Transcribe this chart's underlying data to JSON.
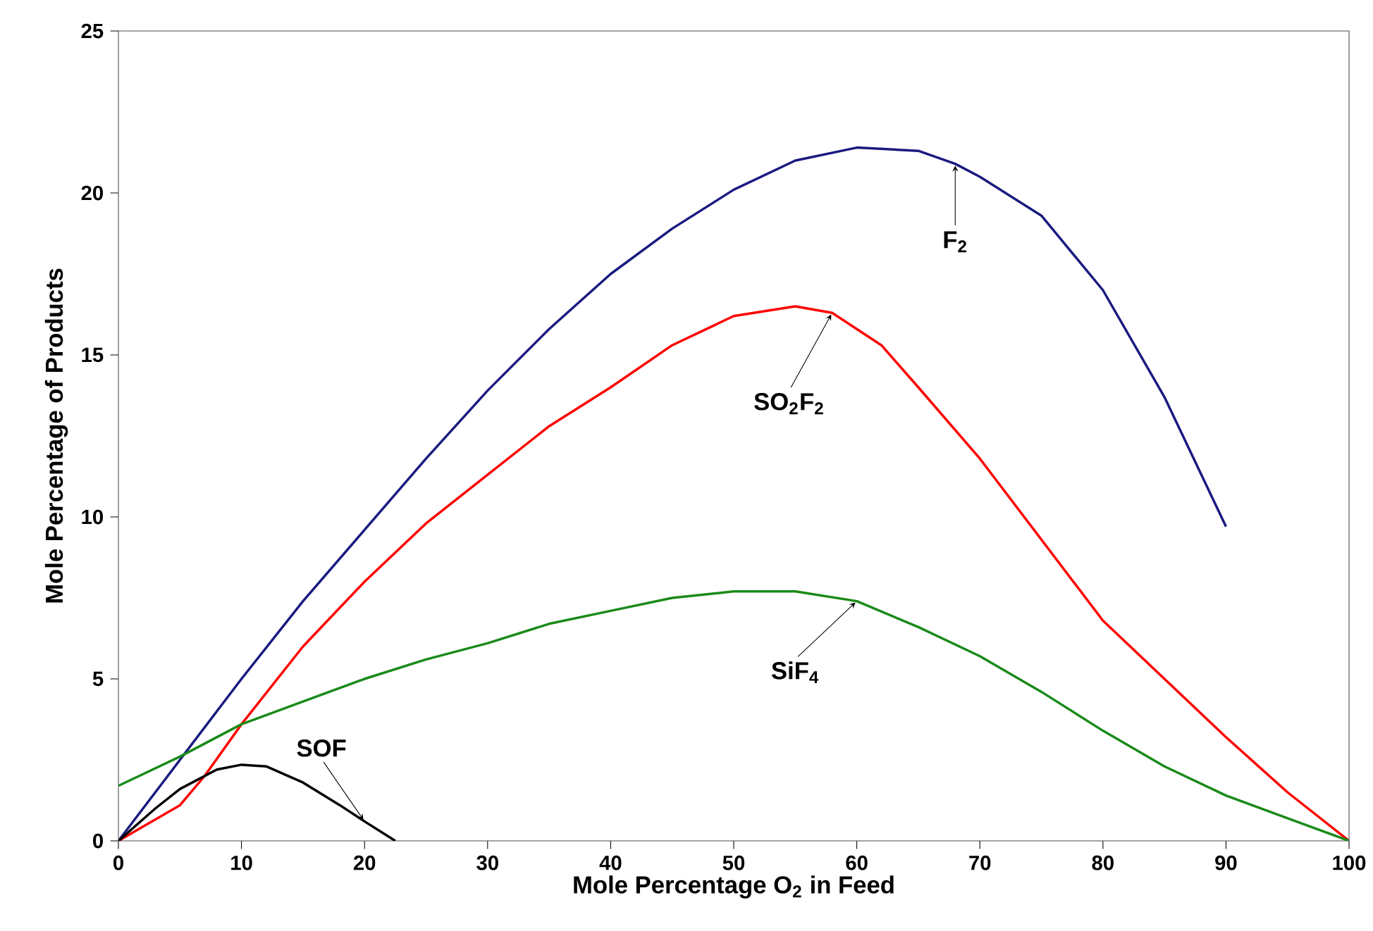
{
  "chart_data": {
    "type": "line",
    "xlabel": "Mole Percentage O$_{2}$ in Feed",
    "ylabel": "Mole Percentage of Products",
    "xlim": [
      0,
      100
    ],
    "ylim": [
      0,
      25
    ],
    "xticks": [
      0,
      10,
      20,
      30,
      40,
      50,
      60,
      70,
      80,
      90,
      100
    ],
    "yticks": [
      0,
      5,
      10,
      15,
      20,
      25
    ],
    "grid": false,
    "marker": "none",
    "line_style": "solid",
    "series": [
      {
        "color": "#1a1a80",
        "x": [
          0,
          5,
          10,
          15,
          20,
          25,
          30,
          35,
          40,
          45,
          50,
          55,
          60,
          65,
          68,
          70,
          75,
          80,
          85,
          90
        ],
        "values": [
          0,
          2.5,
          5.0,
          7.4,
          9.6,
          11.8,
          13.9,
          15.8,
          17.5,
          18.9,
          20.1,
          21.0,
          21.4,
          21.3,
          20.9,
          20.5,
          19.3,
          17.0,
          13.7,
          9.7
        ]
      },
      {
        "color": "#ff0000",
        "x": [
          0,
          5,
          7,
          10,
          15,
          20,
          25,
          30,
          35,
          40,
          45,
          50,
          55,
          58,
          62,
          65,
          70,
          75,
          80,
          85,
          90,
          95,
          100
        ],
        "values": [
          0,
          1.1,
          2.0,
          3.6,
          6.0,
          8.0,
          9.8,
          11.3,
          12.8,
          14.0,
          15.3,
          16.2,
          16.5,
          16.3,
          15.3,
          14.0,
          11.8,
          9.3,
          6.8,
          5.0,
          3.2,
          1.5,
          0
        ]
      },
      {
        "color": "#1a8a1a",
        "x": [
          0,
          5,
          10,
          15,
          20,
          25,
          30,
          35,
          40,
          45,
          50,
          55,
          60,
          65,
          70,
          75,
          80,
          85,
          90,
          95,
          100
        ],
        "values": [
          1.7,
          2.6,
          3.6,
          4.3,
          5.0,
          5.6,
          6.1,
          6.7,
          7.1,
          7.5,
          7.7,
          7.7,
          7.4,
          6.6,
          5.7,
          4.6,
          3.4,
          2.3,
          1.4,
          0.7,
          0
        ]
      },
      {
        "color": "#000000",
        "x": [
          0,
          3,
          5,
          8,
          10,
          12,
          15,
          18,
          20,
          22.5
        ],
        "values": [
          0,
          1.0,
          1.6,
          2.2,
          2.35,
          2.3,
          1.8,
          1.1,
          0.6,
          0
        ]
      }
    ],
    "annotations": [
      {
        "text": "F$_{2}$",
        "x": 68,
        "y": 20.9
      },
      {
        "text": "SO$_{2}$F$_{2}$",
        "x": 58,
        "y": 16.3
      },
      {
        "text": "SiF$_{4}$",
        "x": 60,
        "y": 7.4
      },
      {
        "text": "SOF",
        "x": 20,
        "y": 0.6
      }
    ]
  }
}
